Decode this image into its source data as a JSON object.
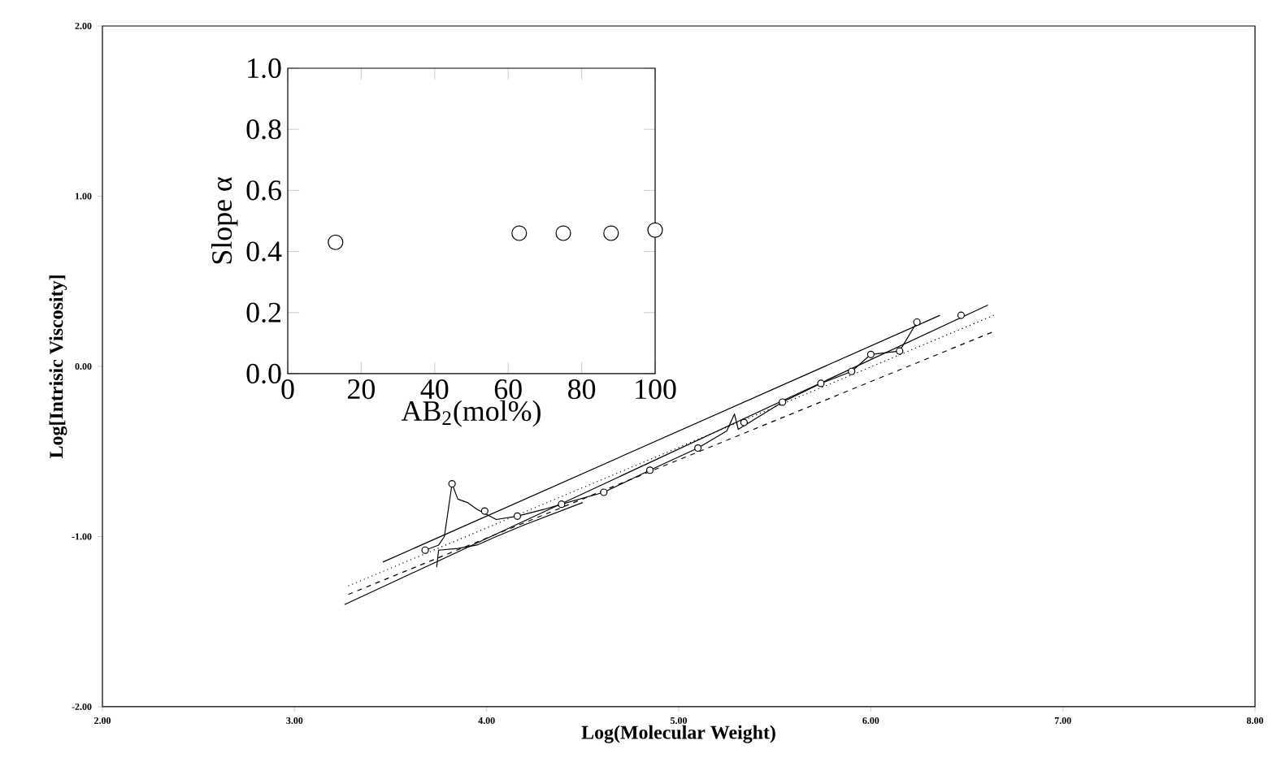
{
  "chart_data": [
    {
      "type": "line",
      "xlabel": "Log(Molecular Weight)",
      "ylabel": "Log[Intrisic Viscosity]",
      "xlim": [
        2,
        8
      ],
      "ylim": [
        -2,
        2
      ],
      "xticks": [
        {
          "value": 2,
          "label": "2.00"
        },
        {
          "value": 3,
          "label": "3.00"
        },
        {
          "value": 4,
          "label": "4.00"
        },
        {
          "value": 5,
          "label": "5.00"
        },
        {
          "value": 6,
          "label": "6.00"
        },
        {
          "value": 7,
          "label": "7.00"
        },
        {
          "value": 8,
          "label": "8.00"
        }
      ],
      "yticks": [
        {
          "value": -2,
          "label": "-2.00"
        },
        {
          "value": -1,
          "label": "-1.00"
        },
        {
          "value": 0,
          "label": "0.00"
        },
        {
          "value": 1,
          "label": "1.00"
        },
        {
          "value": 2,
          "label": "2.00"
        }
      ],
      "series": [
        {
          "type": "line",
          "color": "#000000",
          "line_style": "solid",
          "marker": "none",
          "x": [
            3.26,
            6.61
          ],
          "values": [
            -1.4,
            0.36
          ]
        },
        {
          "type": "line",
          "color": "#000000",
          "line_style": "solid",
          "marker": "none",
          "x": [
            3.46,
            6.36
          ],
          "values": [
            -1.15,
            0.3
          ]
        },
        {
          "type": "line",
          "color": "#000000",
          "line_style": "dotted",
          "marker": "none",
          "x": [
            3.28,
            6.64
          ],
          "values": [
            -1.29,
            0.3
          ]
        },
        {
          "type": "line",
          "color": "#000000",
          "line_style": "dashed",
          "marker": "none",
          "x": [
            3.28,
            6.63
          ],
          "values": [
            -1.34,
            0.2
          ]
        },
        {
          "type": "line",
          "color": "#000000",
          "line_style": "solid",
          "marker": "none",
          "x": [
            3.68,
            3.75,
            3.78,
            3.82,
            3.85,
            3.9,
            3.95,
            4.05,
            4.16,
            4.3,
            4.39,
            4.61,
            4.85,
            5.1,
            5.25,
            5.29,
            5.31,
            5.54,
            5.74,
            5.9,
            6.0,
            6.15,
            6.24
          ],
          "values": [
            -1.08,
            -1.05,
            -1.0,
            -0.69,
            -0.78,
            -0.8,
            -0.84,
            -0.9,
            -0.88,
            -0.84,
            -0.81,
            -0.74,
            -0.61,
            -0.48,
            -0.38,
            -0.28,
            -0.37,
            -0.21,
            -0.1,
            -0.03,
            0.07,
            0.09,
            0.26
          ]
        },
        {
          "type": "line",
          "color": "#000000",
          "line_style": "solid",
          "marker": "none",
          "x": [
            3.74,
            3.75,
            3.85,
            3.95,
            4.05,
            4.2,
            4.5
          ],
          "values": [
            -1.18,
            -1.08,
            -1.07,
            -1.05,
            -1.0,
            -0.93,
            -0.8
          ]
        },
        {
          "type": "scatter",
          "color": "#000000",
          "marker": "circle",
          "x": [
            3.68,
            3.82,
            3.99,
            4.16,
            4.39,
            4.61,
            4.85,
            5.1,
            5.34,
            5.54,
            5.74,
            5.9,
            6.0,
            6.15,
            6.24,
            6.47
          ],
          "values": [
            -1.08,
            -0.69,
            -0.85,
            -0.88,
            -0.81,
            -0.74,
            -0.61,
            -0.48,
            -0.33,
            -0.21,
            -0.1,
            -0.03,
            0.07,
            0.09,
            0.26,
            0.3
          ]
        }
      ]
    },
    {
      "type": "scatter",
      "xlabel": "AB$_{2}$(mol%)",
      "ylabel": "Slope α",
      "xlim": [
        0,
        100
      ],
      "ylim": [
        0,
        1
      ],
      "xticks": [
        0,
        20,
        40,
        60,
        80,
        100
      ],
      "yticks": [
        {
          "value": 0,
          "label": "0.0"
        },
        {
          "value": 0.2,
          "label": "0.2"
        },
        {
          "value": 0.4,
          "label": "0.4"
        },
        {
          "value": 0.6,
          "label": "0.6"
        },
        {
          "value": 0.8,
          "label": "0.8"
        },
        {
          "value": 1,
          "label": "1.0"
        }
      ],
      "marker": "circle",
      "color": "#000000",
      "x": [
        13,
        63,
        75,
        88,
        100
      ],
      "values": [
        0.43,
        0.46,
        0.46,
        0.46,
        0.47
      ]
    }
  ]
}
